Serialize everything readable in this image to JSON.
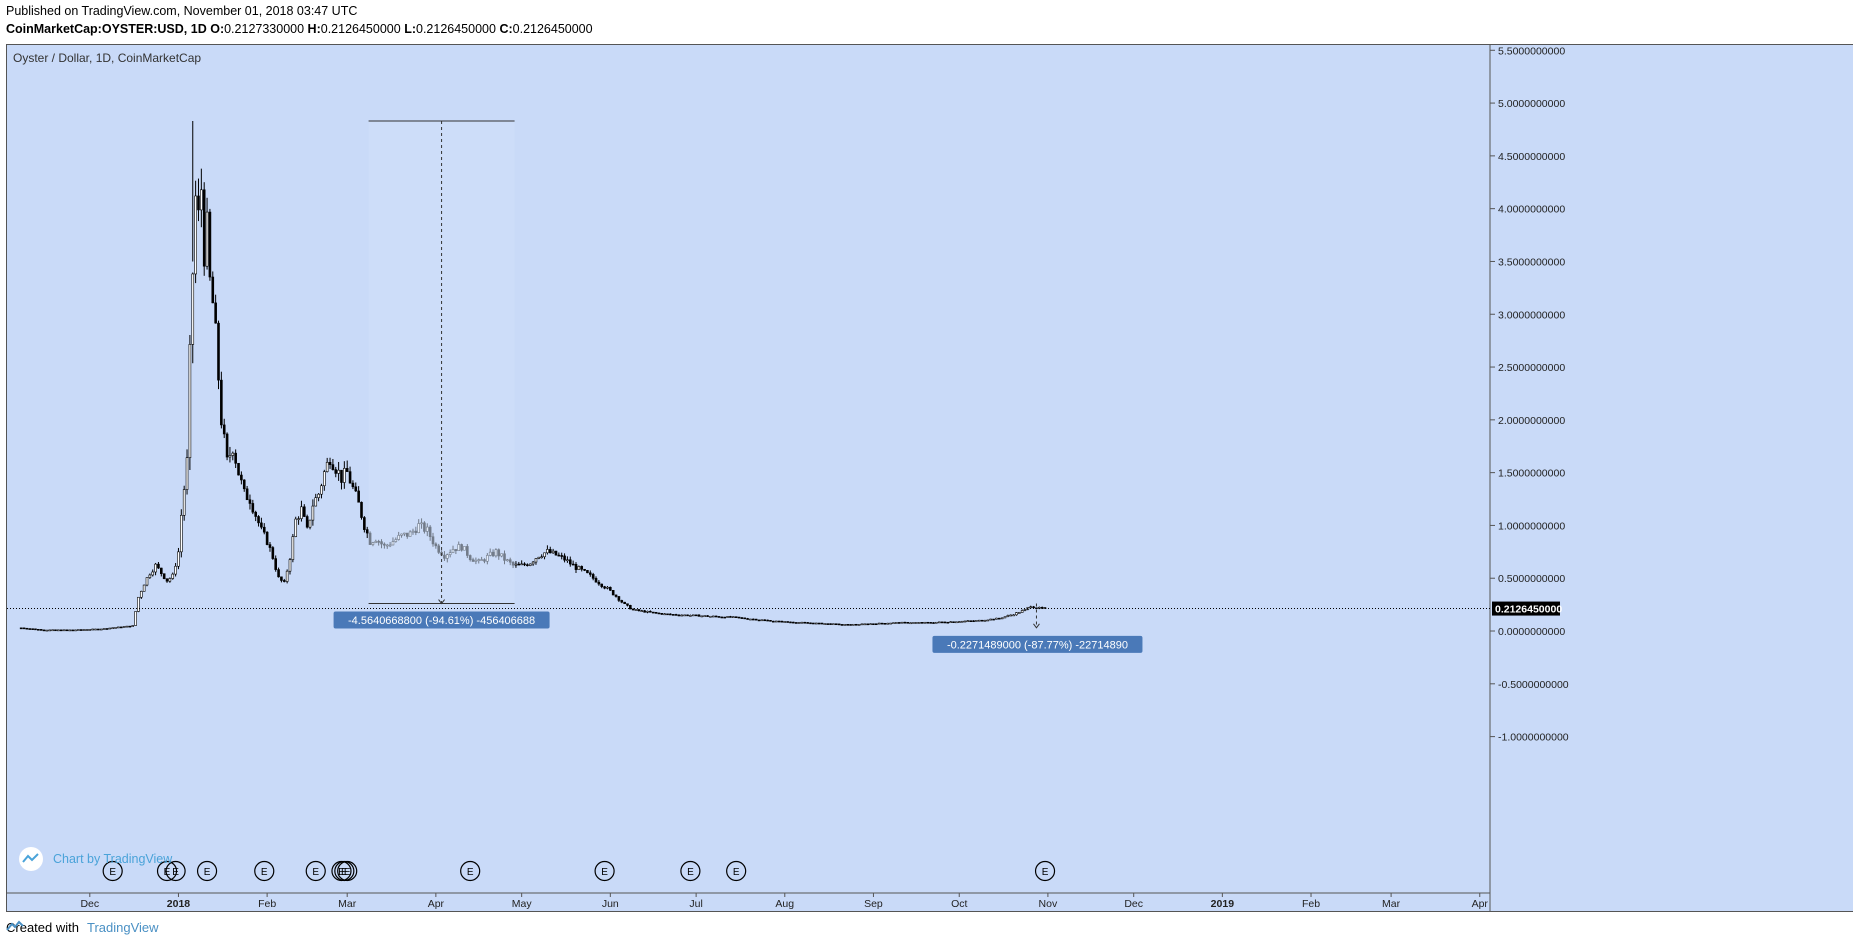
{
  "header": {
    "published": "Published on TradingView.com, November 01, 2018 03:47 UTC",
    "symbol": "CoinMarketCap:OYSTER:USD, 1D",
    "ohlc": [
      {
        "k": "O:",
        "v": "0.2127330000"
      },
      {
        "k": "H:",
        "v": "0.2126450000"
      },
      {
        "k": "L:",
        "v": "0.2126450000"
      },
      {
        "k": "C:",
        "v": "0.2126450000"
      }
    ]
  },
  "footer": {
    "created_with": "Created with",
    "brand": "TradingView"
  },
  "chart_data": {
    "type": "candlestick",
    "title": "Oyster / Dollar, 1D, CoinMarketCap",
    "watermark": "Chart by TradingView",
    "ylim": [
      -1.25,
      5.55
    ],
    "y_ticks": [
      "5.5000000000",
      "5.0000000000",
      "4.5000000000",
      "4.0000000000",
      "3.5000000000",
      "3.0000000000",
      "2.5000000000",
      "2.0000000000",
      "1.5000000000",
      "1.0000000000",
      "0.5000000000",
      "0.0000000000",
      "-0.5000000000",
      "-1.0000000000"
    ],
    "y_tick_values": [
      5.5,
      5.0,
      4.5,
      4.0,
      3.5,
      3.0,
      2.5,
      2.0,
      1.5,
      1.0,
      0.5,
      0.0,
      -0.5,
      -1.0
    ],
    "x_ticks": [
      {
        "label": "Dec",
        "date": "2017-12-01"
      },
      {
        "label": "2018",
        "date": "2018-01-01"
      },
      {
        "label": "Feb",
        "date": "2018-02-01"
      },
      {
        "label": "Mar",
        "date": "2018-03-01"
      },
      {
        "label": "Apr",
        "date": "2018-04-01"
      },
      {
        "label": "May",
        "date": "2018-05-01"
      },
      {
        "label": "Jun",
        "date": "2018-06-01"
      },
      {
        "label": "Jul",
        "date": "2018-07-01"
      },
      {
        "label": "Aug",
        "date": "2018-08-01"
      },
      {
        "label": "Sep",
        "date": "2018-09-01"
      },
      {
        "label": "Oct",
        "date": "2018-10-01"
      },
      {
        "label": "Nov",
        "date": "2018-11-01"
      },
      {
        "label": "Dec",
        "date": "2018-12-01"
      },
      {
        "label": "2019",
        "date": "2019-01-01"
      },
      {
        "label": "Feb",
        "date": "2019-02-01"
      },
      {
        "label": "Mar",
        "date": "2019-03-01"
      },
      {
        "label": "Apr",
        "date": "2019-04-01"
      }
    ],
    "price_series": [
      [
        "2017-11-07",
        0.03
      ],
      [
        "2017-11-15",
        0.01
      ],
      [
        "2017-11-25",
        0.01
      ],
      [
        "2017-12-05",
        0.02
      ],
      [
        "2017-12-12",
        0.04
      ],
      [
        "2017-12-16",
        0.05
      ],
      [
        "2017-12-18",
        0.32
      ],
      [
        "2017-12-20",
        0.45
      ],
      [
        "2017-12-22",
        0.55
      ],
      [
        "2017-12-24",
        0.62
      ],
      [
        "2017-12-26",
        0.55
      ],
      [
        "2017-12-28",
        0.48
      ],
      [
        "2017-12-30",
        0.52
      ],
      [
        "2018-01-01",
        0.75
      ],
      [
        "2018-01-02",
        1.1
      ],
      [
        "2018-01-04",
        1.6
      ],
      [
        "2018-01-05",
        2.6
      ],
      [
        "2018-01-06",
        3.4
      ],
      [
        "2018-01-07",
        4.1
      ],
      [
        "2018-01-08",
        3.9
      ],
      [
        "2018-01-09",
        4.2
      ],
      [
        "2018-01-10",
        3.6
      ],
      [
        "2018-01-11",
        3.8
      ],
      [
        "2018-01-12",
        3.3
      ],
      [
        "2018-01-13",
        3.1
      ],
      [
        "2018-01-14",
        2.8
      ],
      [
        "2018-01-15",
        2.4
      ],
      [
        "2018-01-16",
        2.0
      ],
      [
        "2018-01-18",
        1.6
      ],
      [
        "2018-01-20",
        1.75
      ],
      [
        "2018-01-22",
        1.5
      ],
      [
        "2018-01-24",
        1.3
      ],
      [
        "2018-01-26",
        1.25
      ],
      [
        "2018-01-28",
        1.1
      ],
      [
        "2018-01-30",
        0.95
      ],
      [
        "2018-02-01",
        0.85
      ],
      [
        "2018-02-03",
        0.7
      ],
      [
        "2018-02-05",
        0.5
      ],
      [
        "2018-02-07",
        0.45
      ],
      [
        "2018-02-09",
        0.7
      ],
      [
        "2018-02-11",
        1.05
      ],
      [
        "2018-02-13",
        1.15
      ],
      [
        "2018-02-15",
        0.95
      ],
      [
        "2018-02-17",
        1.2
      ],
      [
        "2018-02-19",
        1.3
      ],
      [
        "2018-02-21",
        1.5
      ],
      [
        "2018-02-23",
        1.65
      ],
      [
        "2018-02-25",
        1.55
      ],
      [
        "2018-02-27",
        1.45
      ],
      [
        "2018-03-01",
        1.5
      ],
      [
        "2018-03-03",
        1.35
      ],
      [
        "2018-03-05",
        1.2
      ],
      [
        "2018-03-07",
        1.0
      ],
      [
        "2018-03-09",
        0.85
      ],
      [
        "2018-03-11",
        0.88
      ],
      [
        "2018-03-14",
        0.8
      ],
      [
        "2018-03-17",
        0.85
      ],
      [
        "2018-03-20",
        0.9
      ],
      [
        "2018-03-23",
        0.92
      ],
      [
        "2018-03-26",
        1.0
      ],
      [
        "2018-03-29",
        0.95
      ],
      [
        "2018-04-01",
        0.8
      ],
      [
        "2018-04-04",
        0.72
      ],
      [
        "2018-04-07",
        0.78
      ],
      [
        "2018-04-10",
        0.8
      ],
      [
        "2018-04-13",
        0.7
      ],
      [
        "2018-04-16",
        0.65
      ],
      [
        "2018-04-19",
        0.7
      ],
      [
        "2018-04-22",
        0.75
      ],
      [
        "2018-04-25",
        0.68
      ],
      [
        "2018-04-28",
        0.62
      ],
      [
        "2018-05-01",
        0.62
      ],
      [
        "2018-05-04",
        0.65
      ],
      [
        "2018-05-07",
        0.72
      ],
      [
        "2018-05-10",
        0.75
      ],
      [
        "2018-05-13",
        0.72
      ],
      [
        "2018-05-16",
        0.68
      ],
      [
        "2018-05-19",
        0.62
      ],
      [
        "2018-05-22",
        0.57
      ],
      [
        "2018-05-25",
        0.52
      ],
      [
        "2018-05-28",
        0.46
      ],
      [
        "2018-05-31",
        0.4
      ],
      [
        "2018-06-03",
        0.33
      ],
      [
        "2018-06-06",
        0.25
      ],
      [
        "2018-06-09",
        0.2
      ],
      [
        "2018-06-14",
        0.18
      ],
      [
        "2018-06-20",
        0.16
      ],
      [
        "2018-06-28",
        0.15
      ],
      [
        "2018-07-06",
        0.14
      ],
      [
        "2018-07-14",
        0.13
      ],
      [
        "2018-07-22",
        0.11
      ],
      [
        "2018-07-30",
        0.09
      ],
      [
        "2018-08-07",
        0.08
      ],
      [
        "2018-08-15",
        0.07
      ],
      [
        "2018-08-23",
        0.06
      ],
      [
        "2018-09-01",
        0.07
      ],
      [
        "2018-09-10",
        0.08
      ],
      [
        "2018-09-20",
        0.08
      ],
      [
        "2018-09-30",
        0.09
      ],
      [
        "2018-10-08",
        0.1
      ],
      [
        "2018-10-15",
        0.12
      ],
      [
        "2018-10-20",
        0.16
      ],
      [
        "2018-10-24",
        0.2
      ],
      [
        "2018-10-26",
        0.24
      ],
      [
        "2018-10-28",
        0.22
      ],
      [
        "2018-10-30",
        0.21
      ],
      [
        "2018-10-31",
        0.2126
      ]
    ],
    "last_price": {
      "value": 0.212645,
      "label": "0.2126450000"
    },
    "measurements": [
      {
        "label": "-4.5640668800 (-94.61%) -456406688",
        "from_date": "2018-04-03",
        "top": 4.83,
        "bottom": 0.26
      },
      {
        "label": "-0.2271489000 (-87.77%) -22714890",
        "from_date": "2018-10-28",
        "top": 0.26,
        "bottom": 0.03
      }
    ],
    "event_markers": [
      {
        "date": "2017-12-09",
        "label": "E"
      },
      {
        "date": "2017-12-28",
        "label": "E"
      },
      {
        "date": "2017-12-31",
        "label": "E"
      },
      {
        "date": "2018-01-11",
        "label": "E"
      },
      {
        "date": "2018-01-31",
        "label": "E"
      },
      {
        "date": "2018-02-18",
        "label": "E"
      },
      {
        "date": "2018-02-27",
        "label": "E"
      },
      {
        "date": "2018-02-28",
        "label": "E"
      },
      {
        "date": "2018-03-01",
        "label": "E"
      },
      {
        "date": "2018-04-13",
        "label": "E"
      },
      {
        "date": "2018-05-30",
        "label": "E"
      },
      {
        "date": "2018-06-29",
        "label": "E"
      },
      {
        "date": "2018-07-15",
        "label": "E"
      },
      {
        "date": "2018-10-31",
        "label": "E"
      }
    ],
    "colors": {
      "background": "#c9daf8",
      "candle": "#000000",
      "label_bg": "#4a79b8",
      "watermark": "#4aa3d9"
    }
  }
}
